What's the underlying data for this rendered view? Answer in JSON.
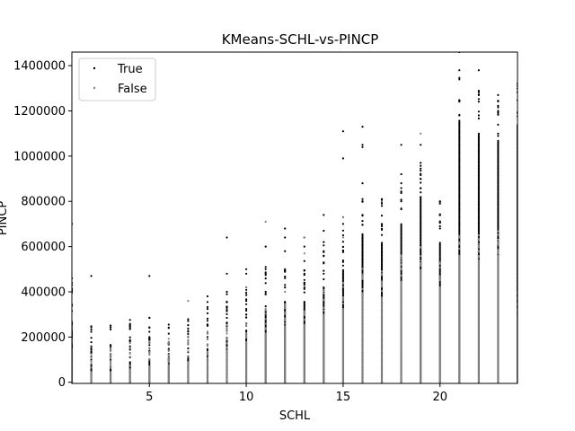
{
  "chart_data": {
    "type": "scatter",
    "title": "KMeans-SCHL-vs-PINCP",
    "xlabel": "SCHL",
    "ylabel": "PINCP",
    "xlim": [
      1,
      24
    ],
    "ylim": [
      -5000,
      1460000
    ],
    "xticks": [
      5,
      10,
      15,
      20
    ],
    "yticks": [
      0,
      200000,
      400000,
      600000,
      800000,
      1000000,
      1200000,
      1400000
    ],
    "grid": false,
    "legend": "top-left",
    "series": [
      {
        "name": "True",
        "color": "#000000",
        "columns": [
          {
            "x": 1,
            "bands": [
              [
                0,
                270000
              ]
            ],
            "outliers": [
              700000
            ]
          },
          {
            "x": 2,
            "bands": [
              [
                0,
                80000
              ]
            ],
            "outliers": [
              100000,
              150000,
              470000
            ]
          },
          {
            "x": 3,
            "bands": [
              [
                0,
                75000
              ]
            ],
            "outliers": [
              100000,
              140000
            ]
          },
          {
            "x": 4,
            "bands": [
              [
                0,
                90000
              ]
            ],
            "outliers": [
              110000,
              185000,
              235000,
              245000
            ]
          },
          {
            "x": 5,
            "bands": [
              [
                0,
                105000
              ]
            ],
            "outliers": [
              150000,
              175000,
              200000,
              285000,
              470000
            ]
          },
          {
            "x": 6,
            "bands": [
              [
                0,
                110000
              ]
            ],
            "outliers": [
              140000,
              170000,
              215000,
              240000,
              255000
            ]
          },
          {
            "x": 7,
            "bands": [
              [
                0,
                115000
              ]
            ],
            "outliers": [
              150000,
              200000
            ]
          },
          {
            "x": 8,
            "bands": [
              [
                0,
                150000
              ]
            ],
            "outliers": [
              190000,
              250000,
              305000,
              355000,
              380000
            ]
          },
          {
            "x": 9,
            "bands": [
              [
                0,
                200000
              ]
            ],
            "outliers": [
              260000,
              320000,
              400000,
              480000,
              640000
            ]
          },
          {
            "x": 10,
            "bands": [
              [
                0,
                230000
              ]
            ],
            "outliers": [
              300000,
              360000,
              420000,
              480000,
              500000
            ]
          },
          {
            "x": 11,
            "bands": [
              [
                0,
                320000
              ]
            ],
            "outliers": [
              400000,
              500000,
              600000
            ]
          },
          {
            "x": 12,
            "bands": [
              [
                0,
                360000
              ]
            ],
            "outliers": [
              430000,
              500000,
              580000,
              640000,
              680000
            ]
          },
          {
            "x": 13,
            "bands": [
              [
                0,
                360000
              ]
            ],
            "outliers": [
              420000,
              480000,
              600000,
              640000
            ]
          },
          {
            "x": 14,
            "bands": [
              [
                0,
                420000
              ]
            ],
            "outliers": [
              480000,
              560000,
              620000,
              670000,
              740000
            ]
          },
          {
            "x": 15,
            "bands": [
              [
                0,
                500000
              ]
            ],
            "outliers": [
              580000,
              650000,
              700000,
              730000,
              990000,
              1110000
            ]
          },
          {
            "x": 16,
            "bands": [
              [
                0,
                660000
              ]
            ],
            "outliers": [
              740000,
              800000,
              880000,
              1040000,
              1050000,
              1130000
            ]
          },
          {
            "x": 17,
            "bands": [
              [
                0,
                620000
              ]
            ],
            "outliers": [
              700000,
              780000,
              810000
            ]
          },
          {
            "x": 18,
            "bands": [
              [
                0,
                700000
              ]
            ],
            "outliers": [
              800000,
              880000,
              920000,
              1050000
            ]
          },
          {
            "x": 19,
            "bands": [
              [
                0,
                820000
              ]
            ],
            "outliers": [
              900000,
              1050000
            ]
          },
          {
            "x": 20,
            "bands": [
              [
                0,
                620000
              ]
            ],
            "outliers": [
              680000,
              740000,
              800000
            ]
          },
          {
            "x": 21,
            "bands": [
              [
                0,
                1160000
              ]
            ],
            "outliers": [
              1380000,
              1460000
            ]
          },
          {
            "x": 22,
            "bands": [
              [
                0,
                1100000
              ]
            ],
            "outliers": [
              1180000,
              1270000,
              1380000
            ]
          },
          {
            "x": 23,
            "bands": [
              [
                0,
                1070000
              ]
            ],
            "outliers": [
              1270000
            ]
          },
          {
            "x": 24,
            "bands": [
              [
                0,
                1140000
              ]
            ],
            "outliers": []
          }
        ]
      },
      {
        "name": "False",
        "color": "#808080",
        "columns": [
          {
            "x": 1,
            "bands": [
              [
                0,
                150000
              ]
            ],
            "outliers": []
          },
          {
            "x": 2,
            "bands": [
              [
                0,
                50000
              ]
            ],
            "outliers": []
          },
          {
            "x": 3,
            "bands": [
              [
                0,
                50000
              ]
            ],
            "outliers": []
          },
          {
            "x": 4,
            "bands": [
              [
                0,
                60000
              ]
            ],
            "outliers": []
          },
          {
            "x": 5,
            "bands": [
              [
                0,
                70000
              ]
            ],
            "outliers": []
          },
          {
            "x": 6,
            "bands": [
              [
                0,
                80000
              ]
            ],
            "outliers": []
          },
          {
            "x": 7,
            "bands": [
              [
                0,
                90000
              ]
            ],
            "outliers": [
              360000
            ]
          },
          {
            "x": 8,
            "bands": [
              [
                0,
                110000
              ]
            ],
            "outliers": []
          },
          {
            "x": 9,
            "bands": [
              [
                0,
                140000
              ]
            ],
            "outliers": []
          },
          {
            "x": 10,
            "bands": [
              [
                0,
                180000
              ]
            ],
            "outliers": [
              420000
            ]
          },
          {
            "x": 11,
            "bands": [
              [
                0,
                220000
              ]
            ],
            "outliers": [
              710000
            ]
          },
          {
            "x": 12,
            "bands": [
              [
                0,
                250000
              ]
            ],
            "outliers": [
              400000
            ]
          },
          {
            "x": 13,
            "bands": [
              [
                0,
                260000
              ]
            ],
            "outliers": [
              570000,
              640000
            ]
          },
          {
            "x": 14,
            "bands": [
              [
                0,
                300000
              ]
            ],
            "outliers": []
          },
          {
            "x": 15,
            "bands": [
              [
                0,
                330000
              ]
            ],
            "outliers": [
              640000,
              730000
            ]
          },
          {
            "x": 16,
            "bands": [
              [
                0,
                400000
              ]
            ],
            "outliers": []
          },
          {
            "x": 17,
            "bands": [
              [
                0,
                380000
              ]
            ],
            "outliers": [
              800000
            ]
          },
          {
            "x": 18,
            "bands": [
              [
                0,
                450000
              ]
            ],
            "outliers": []
          },
          {
            "x": 19,
            "bands": [
              [
                0,
                500000
              ]
            ],
            "outliers": [
              1100000
            ]
          },
          {
            "x": 20,
            "bands": [
              [
                0,
                420000
              ]
            ],
            "outliers": []
          },
          {
            "x": 21,
            "bands": [
              [
                0,
                560000
              ]
            ],
            "outliers": []
          },
          {
            "x": 22,
            "bands": [
              [
                0,
                540000
              ]
            ],
            "outliers": []
          },
          {
            "x": 23,
            "bands": [
              [
                0,
                560000
              ]
            ],
            "outliers": []
          },
          {
            "x": 24,
            "bands": [
              [
                0,
                300000
              ]
            ],
            "outliers": []
          }
        ]
      }
    ]
  }
}
